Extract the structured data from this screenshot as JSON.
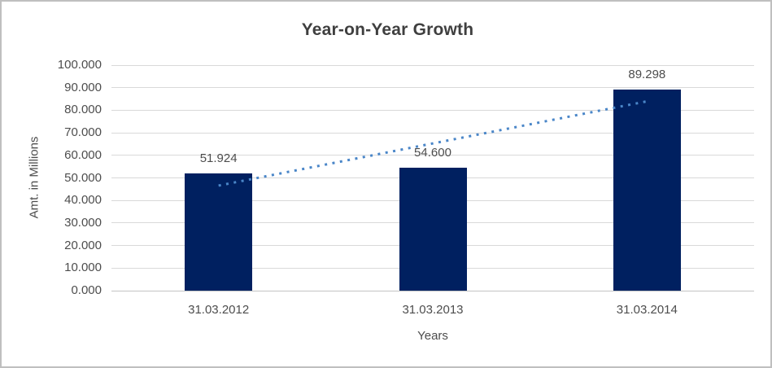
{
  "chart_data": {
    "type": "bar",
    "title": "Year-on-Year Growth",
    "xlabel": "Years",
    "ylabel": "Amt. in Millions",
    "categories": [
      "31.03.2012",
      "31.03.2013",
      "31.03.2014"
    ],
    "values": [
      51.924,
      54.6,
      89.298
    ],
    "value_labels": [
      "51.924",
      "54.600",
      "89.298"
    ],
    "ylim": [
      0,
      100
    ],
    "y_tick_step": 10,
    "y_tick_labels": [
      "0.000",
      "10.000",
      "20.000",
      "30.000",
      "40.000",
      "50.000",
      "60.000",
      "70.000",
      "80.000",
      "90.000",
      "100.000"
    ],
    "grid": "horizontal",
    "legend": "none",
    "bar_color": "#002060",
    "trendline": {
      "type": "linear",
      "style": "dotted",
      "color": "#4a86c8"
    }
  }
}
